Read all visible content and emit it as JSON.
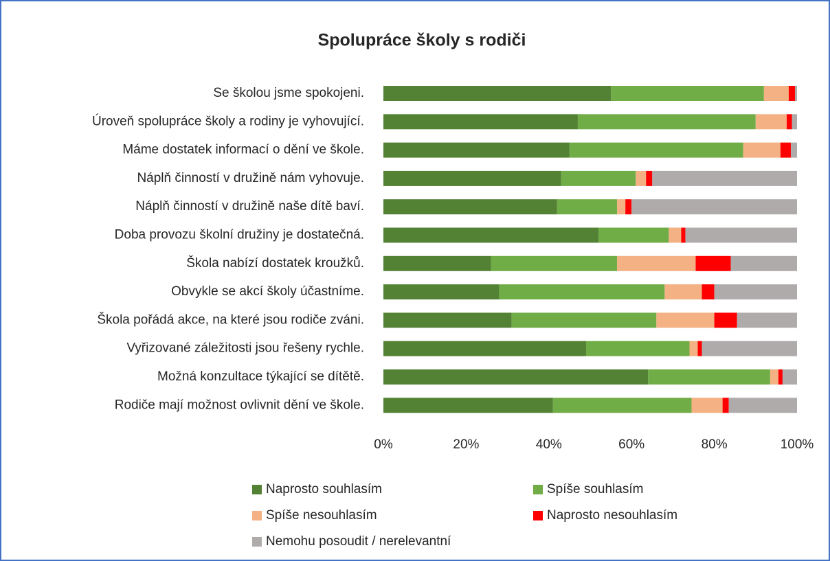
{
  "chart_data": {
    "type": "stacked-bar-horizontal",
    "title": "Spolupráce školy s rodiči",
    "categories": [
      "Se školou jsme spokojeni.",
      "Úroveň spolupráce školy a rodiny je vyhovující.",
      "Máme dostatek informací o dění ve škole.",
      "Náplň činností v družině nám vyhovuje.",
      "Náplň činností v družině naše dítě baví.",
      "Doba provozu školní družiny je dostatečná.",
      "Škola nabízí dostatek kroužků.",
      "Obvykle se akcí školy účastníme.",
      "Škola pořádá akce, na které jsou rodiče zváni.",
      "Vyřizované záležitosti jsou řešeny rychle.",
      "Možná konzultace týkající se dítětě.",
      "Rodiče mají možnost ovlivnit dění ve škole."
    ],
    "series": [
      {
        "name": "Naprosto souhlasím",
        "color": "#548235",
        "values": [
          55,
          47,
          45,
          43,
          42,
          52,
          26,
          28,
          31,
          49,
          64,
          41
        ]
      },
      {
        "name": "Spíše souhlasím",
        "color": "#70ad47",
        "values": [
          37,
          43,
          42,
          18,
          14.5,
          17,
          30.5,
          40,
          35,
          25,
          29.5,
          33.5
        ]
      },
      {
        "name": "Spíše nesouhlasím",
        "color": "#f4b183",
        "values": [
          6,
          7.5,
          9,
          2.5,
          2,
          3,
          19,
          9,
          14,
          2,
          2,
          7.5
        ]
      },
      {
        "name": "Naprosto nesouhlasím",
        "color": "#ff0000",
        "values": [
          1.5,
          1.3,
          2.5,
          1.5,
          1.5,
          1,
          8.5,
          3,
          5.5,
          1,
          1,
          1.5
        ]
      },
      {
        "name": "Nemohu posoudit / nerelevantní",
        "color": "#afabab",
        "values": [
          0.5,
          1.2,
          1.5,
          35,
          40,
          27,
          16,
          20,
          14.5,
          23,
          3.5,
          16.5
        ]
      }
    ],
    "xlim": [
      0,
      100
    ],
    "xticks": [
      {
        "value": 0,
        "label": "0%"
      },
      {
        "value": 20,
        "label": "20%"
      },
      {
        "value": 40,
        "label": "40%"
      },
      {
        "value": 60,
        "label": "60%"
      },
      {
        "value": 80,
        "label": "80%"
      },
      {
        "value": 100,
        "label": "100%"
      }
    ],
    "legend": "bottom"
  }
}
